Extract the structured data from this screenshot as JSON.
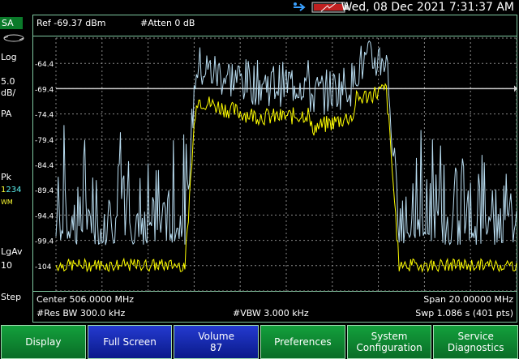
{
  "status_bar": {
    "datetime": "Wed, 08 Dec 2021 7:31:37 AM"
  },
  "left_panel": {
    "mode": "SA",
    "scale": "Log",
    "scale_value": "5.0",
    "scale_unit": "dB/",
    "preamp": "PA",
    "detector": "Pk",
    "trace_numbers": [
      "1",
      "2",
      "3",
      "4"
    ],
    "trace_mode": "WM",
    "average": "LgAv",
    "average_count": "10",
    "sweep": "Step"
  },
  "header": {
    "ref_level": "Ref -69.37 dBm",
    "attenuation": "#Atten 0 dB"
  },
  "plot": {
    "y_labels": [
      "-64.4",
      "-69.4",
      "-74.4",
      "-79.4",
      "-84.4",
      "-89.4",
      "-94.4",
      "-99.4",
      "-104"
    ],
    "ref_line_label": "-69.4"
  },
  "footer": {
    "center": "Center 506.0000 MHz",
    "span": "Span 20.00000 MHz",
    "rbw": "#Res BW 300.0 kHz",
    "vbw": "#VBW 3.000 kHz",
    "sweep": "Swp 1.086  s (401 pts)"
  },
  "softkeys": [
    {
      "line1": "Display",
      "line2": ""
    },
    {
      "line1": "Full Screen",
      "line2": ""
    },
    {
      "line1": "Volume",
      "line2": "87"
    },
    {
      "line1": "Preferences",
      "line2": ""
    },
    {
      "line1": "System",
      "line2": "Configuration"
    },
    {
      "line1": "Service",
      "line2": "Diagnostics"
    }
  ],
  "colors": {
    "trace_yellow": "#ffff00",
    "trace_blue": "#b8dcf0",
    "accent_green": "#0a7a2a",
    "active_key": "#1a2db0"
  }
}
